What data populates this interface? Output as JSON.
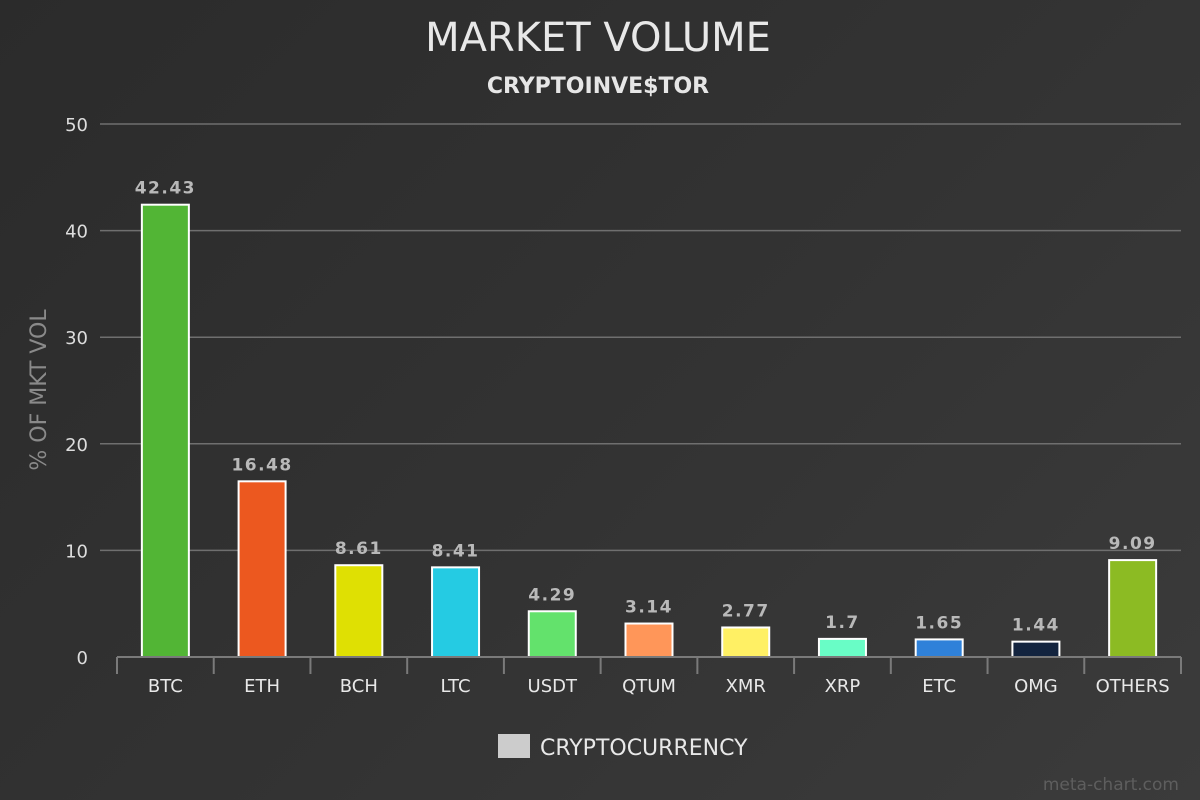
{
  "chart_data": {
    "type": "bar",
    "title": "MARKET VOLUME",
    "subtitle": "CRYPTOINVE$TOR",
    "xlabel": "",
    "ylabel": "% OF MKT VOL",
    "ylim": [
      0,
      50
    ],
    "yticks": [
      0,
      10,
      20,
      30,
      40,
      50
    ],
    "grid": true,
    "categories": [
      "BTC",
      "ETH",
      "BCH",
      "LTC",
      "USDT",
      "QTUM",
      "XMR",
      "XRP",
      "ETC",
      "OMG",
      "OTHERS"
    ],
    "values": [
      42.43,
      16.48,
      8.61,
      8.41,
      4.29,
      3.14,
      2.77,
      1.7,
      1.65,
      1.44,
      9.09
    ],
    "data_labels": [
      "42.43",
      "16.48",
      "8.61",
      "8.41",
      "4.29",
      "3.14",
      "2.77",
      "1.7",
      "1.65",
      "1.44",
      "9.09"
    ],
    "colors": [
      "#52b535",
      "#ec581f",
      "#dfe003",
      "#25cbe3",
      "#63e26c",
      "#ff9659",
      "#fff064",
      "#69fdc6",
      "#2f81d9",
      "#13243f",
      "#8cbb23"
    ],
    "bar_outline": "#ffffff",
    "legend": {
      "position": "bottom-center",
      "label": "CRYPTOCURRENCY",
      "swatch_color": "#cccccc"
    }
  },
  "credit": "meta-chart.com"
}
